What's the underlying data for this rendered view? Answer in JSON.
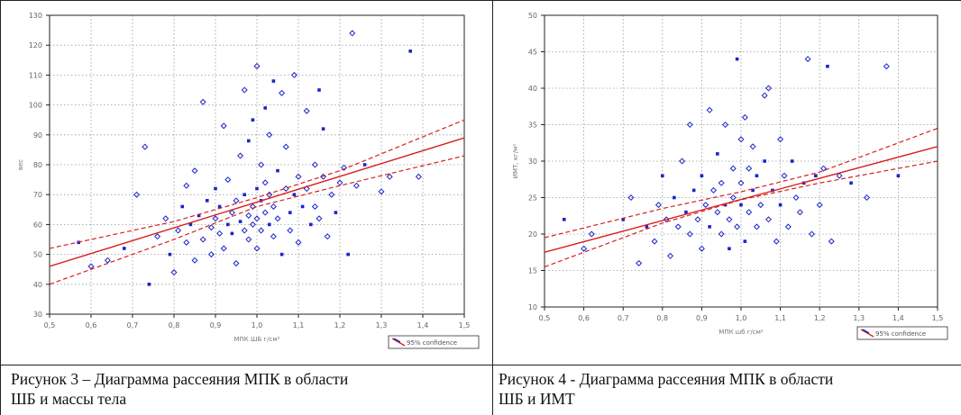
{
  "captions": {
    "left_line1": "Рисунок 3 – Диаграмма рассеяния МПК в области",
    "left_line2": "ШБ и массы тела",
    "right_line1": "Рисунок 4 - Диаграмма рассеяния МПК в области",
    "right_line2": "ШБ и ИМТ"
  },
  "colors": {
    "points": "#1a24c8",
    "fit": "#d62020",
    "grid": "#9a9a9a"
  },
  "chart_data": [
    {
      "type": "scatter",
      "title": "",
      "xlabel": "МПК ШБ г/см²",
      "ylabel": "вес",
      "xlim": [
        0.5,
        1.5
      ],
      "ylim": [
        30,
        130
      ],
      "xticks": [
        "0,5",
        "0,6",
        "0,7",
        "0,8",
        "0,9",
        "1,0",
        "1,1",
        "1,2",
        "1,3",
        "1,4",
        "1,5"
      ],
      "yticks": [
        "30",
        "40",
        "50",
        "60",
        "70",
        "80",
        "90",
        "100",
        "110",
        "120",
        "130"
      ],
      "grid": true,
      "legend": {
        "label": "95% confidence",
        "position": "bottom-right"
      },
      "fit": {
        "x": [
          0.5,
          1.5
        ],
        "y": [
          46,
          89
        ]
      },
      "ci_upper": {
        "x": [
          0.5,
          0.8,
          1.0,
          1.2,
          1.5
        ],
        "y": [
          52,
          61,
          69,
          78,
          95
        ]
      },
      "ci_lower": {
        "x": [
          0.5,
          0.8,
          1.0,
          1.2,
          1.5
        ],
        "y": [
          40,
          55,
          66,
          73,
          83
        ]
      },
      "points": [
        [
          0.57,
          54
        ],
        [
          0.6,
          46
        ],
        [
          0.64,
          48
        ],
        [
          0.68,
          52
        ],
        [
          0.71,
          70
        ],
        [
          0.73,
          86
        ],
        [
          0.74,
          40
        ],
        [
          0.76,
          56
        ],
        [
          0.78,
          62
        ],
        [
          0.79,
          50
        ],
        [
          0.8,
          44
        ],
        [
          0.81,
          58
        ],
        [
          0.82,
          66
        ],
        [
          0.83,
          54
        ],
        [
          0.83,
          73
        ],
        [
          0.84,
          60
        ],
        [
          0.85,
          48
        ],
        [
          0.85,
          78
        ],
        [
          0.86,
          63
        ],
        [
          0.87,
          101
        ],
        [
          0.87,
          55
        ],
        [
          0.88,
          68
        ],
        [
          0.89,
          59
        ],
        [
          0.89,
          50
        ],
        [
          0.9,
          72
        ],
        [
          0.9,
          62
        ],
        [
          0.91,
          57
        ],
        [
          0.91,
          66
        ],
        [
          0.92,
          93
        ],
        [
          0.92,
          52
        ],
        [
          0.93,
          60
        ],
        [
          0.93,
          75
        ],
        [
          0.94,
          64
        ],
        [
          0.94,
          57
        ],
        [
          0.95,
          68
        ],
        [
          0.95,
          47
        ],
        [
          0.96,
          61
        ],
        [
          0.96,
          83
        ],
        [
          0.97,
          58
        ],
        [
          0.97,
          70
        ],
        [
          0.97,
          105
        ],
        [
          0.98,
          63
        ],
        [
          0.98,
          88
        ],
        [
          0.98,
          55
        ],
        [
          0.99,
          66
        ],
        [
          0.99,
          95
        ],
        [
          0.99,
          60
        ],
        [
          1.0,
          113
        ],
        [
          1.0,
          72
        ],
        [
          1.0,
          62
        ],
        [
          1.0,
          52
        ],
        [
          1.01,
          68
        ],
        [
          1.01,
          80
        ],
        [
          1.01,
          58
        ],
        [
          1.02,
          99
        ],
        [
          1.02,
          64
        ],
        [
          1.02,
          74
        ],
        [
          1.03,
          60
        ],
        [
          1.03,
          90
        ],
        [
          1.03,
          70
        ],
        [
          1.04,
          108
        ],
        [
          1.04,
          56
        ],
        [
          1.04,
          66
        ],
        [
          1.05,
          78
        ],
        [
          1.05,
          62
        ],
        [
          1.06,
          104
        ],
        [
          1.06,
          50
        ],
        [
          1.07,
          72
        ],
        [
          1.07,
          86
        ],
        [
          1.08,
          64
        ],
        [
          1.08,
          58
        ],
        [
          1.09,
          110
        ],
        [
          1.09,
          70
        ],
        [
          1.1,
          76
        ],
        [
          1.1,
          54
        ],
        [
          1.11,
          66
        ],
        [
          1.12,
          98
        ],
        [
          1.12,
          72
        ],
        [
          1.13,
          60
        ],
        [
          1.14,
          80
        ],
        [
          1.14,
          66
        ],
        [
          1.15,
          105
        ],
        [
          1.15,
          62
        ],
        [
          1.16,
          76
        ],
        [
          1.16,
          92
        ],
        [
          1.17,
          56
        ],
        [
          1.18,
          70
        ],
        [
          1.19,
          64
        ],
        [
          1.2,
          74
        ],
        [
          1.21,
          79
        ],
        [
          1.22,
          50
        ],
        [
          1.23,
          124
        ],
        [
          1.24,
          73
        ],
        [
          1.26,
          80
        ],
        [
          1.3,
          71
        ],
        [
          1.32,
          76
        ],
        [
          1.37,
          118
        ],
        [
          1.39,
          76
        ]
      ]
    },
    {
      "type": "scatter",
      "title": "",
      "xlabel": "МПК шб г/см²",
      "ylabel": "ИМТ, кг/м²",
      "xlim": [
        0.5,
        1.5
      ],
      "ylim": [
        10,
        50
      ],
      "xticks": [
        "0,5",
        "0,6",
        "0,7",
        "0,8",
        "0,9",
        "1,0",
        "1,1",
        "1,2",
        "1,3",
        "1,4",
        "1,5"
      ],
      "yticks": [
        "10",
        "15",
        "20",
        "25",
        "30",
        "35",
        "40",
        "45",
        "50"
      ],
      "grid": true,
      "legend": {
        "label": "95% confidence",
        "position": "bottom-right"
      },
      "fit": {
        "x": [
          0.5,
          1.5
        ],
        "y": [
          17.5,
          32
        ]
      },
      "ci_upper": {
        "x": [
          0.5,
          0.8,
          1.0,
          1.2,
          1.5
        ],
        "y": [
          19.5,
          23.5,
          25.8,
          28.5,
          34.5
        ]
      },
      "ci_lower": {
        "x": [
          0.5,
          0.8,
          1.0,
          1.2,
          1.5
        ],
        "y": [
          15.5,
          21.5,
          24.7,
          27,
          30
        ]
      },
      "points": [
        [
          0.55,
          22
        ],
        [
          0.6,
          18
        ],
        [
          0.62,
          20
        ],
        [
          0.7,
          22
        ],
        [
          0.72,
          25
        ],
        [
          0.74,
          16
        ],
        [
          0.76,
          21
        ],
        [
          0.78,
          19
        ],
        [
          0.79,
          24
        ],
        [
          0.8,
          28
        ],
        [
          0.81,
          22
        ],
        [
          0.82,
          17
        ],
        [
          0.83,
          25
        ],
        [
          0.84,
          21
        ],
        [
          0.85,
          30
        ],
        [
          0.86,
          23
        ],
        [
          0.87,
          35
        ],
        [
          0.87,
          20
        ],
        [
          0.88,
          26
        ],
        [
          0.89,
          22
        ],
        [
          0.9,
          18
        ],
        [
          0.9,
          28
        ],
        [
          0.91,
          24
        ],
        [
          0.92,
          37
        ],
        [
          0.92,
          21
        ],
        [
          0.93,
          26
        ],
        [
          0.94,
          23
        ],
        [
          0.94,
          31
        ],
        [
          0.95,
          20
        ],
        [
          0.95,
          27
        ],
        [
          0.96,
          24
        ],
        [
          0.96,
          35
        ],
        [
          0.97,
          22
        ],
        [
          0.97,
          18
        ],
        [
          0.98,
          29
        ],
        [
          0.98,
          25
        ],
        [
          0.99,
          44
        ],
        [
          0.99,
          21
        ],
        [
          1.0,
          33
        ],
        [
          1.0,
          24
        ],
        [
          1.0,
          27
        ],
        [
          1.01,
          36
        ],
        [
          1.01,
          19
        ],
        [
          1.02,
          29
        ],
        [
          1.02,
          23
        ],
        [
          1.03,
          26
        ],
        [
          1.03,
          32
        ],
        [
          1.04,
          21
        ],
        [
          1.04,
          28
        ],
        [
          1.05,
          24
        ],
        [
          1.06,
          39
        ],
        [
          1.06,
          30
        ],
        [
          1.07,
          22
        ],
        [
          1.07,
          40
        ],
        [
          1.08,
          26
        ],
        [
          1.09,
          19
        ],
        [
          1.1,
          33
        ],
        [
          1.1,
          24
        ],
        [
          1.11,
          28
        ],
        [
          1.12,
          21
        ],
        [
          1.13,
          30
        ],
        [
          1.14,
          25
        ],
        [
          1.15,
          23
        ],
        [
          1.16,
          27
        ],
        [
          1.17,
          44
        ],
        [
          1.18,
          20
        ],
        [
          1.19,
          28
        ],
        [
          1.2,
          24
        ],
        [
          1.21,
          29
        ],
        [
          1.22,
          43
        ],
        [
          1.23,
          19
        ],
        [
          1.25,
          28
        ],
        [
          1.28,
          27
        ],
        [
          1.32,
          25
        ],
        [
          1.37,
          43
        ],
        [
          1.4,
          28
        ]
      ]
    }
  ]
}
